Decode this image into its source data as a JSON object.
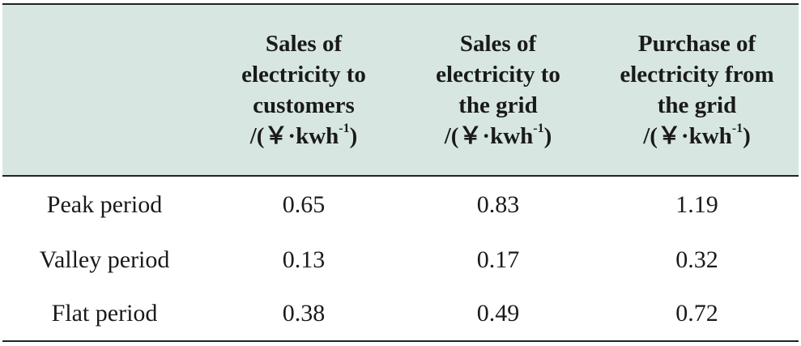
{
  "table": {
    "headers": [
      {
        "lines": [
          ""
        ]
      },
      {
        "lines": [
          "Sales of",
          "electricity to",
          "customers"
        ],
        "unit_prefix": "/(￥·kwh",
        "unit_sup": "-1",
        "unit_suffix": ")"
      },
      {
        "lines": [
          "Sales of",
          "electricity to",
          "the grid"
        ],
        "unit_prefix": "/(￥·kwh",
        "unit_sup": "-1",
        "unit_suffix": ")"
      },
      {
        "lines": [
          "Purchase of",
          "electricity from",
          "the grid"
        ],
        "unit_prefix": "/(￥·kwh",
        "unit_sup": "-1",
        "unit_suffix": ")"
      }
    ],
    "rows": [
      [
        "Peak period",
        "0.65",
        "0.83",
        "1.19"
      ],
      [
        "Valley period",
        "0.13",
        "0.17",
        "0.32"
      ],
      [
        "Flat period",
        "0.38",
        "0.49",
        "0.72"
      ]
    ]
  },
  "colors": {
    "header_background": "#d7e6e1",
    "rule": "#222222",
    "text": "#1a1a1a"
  }
}
